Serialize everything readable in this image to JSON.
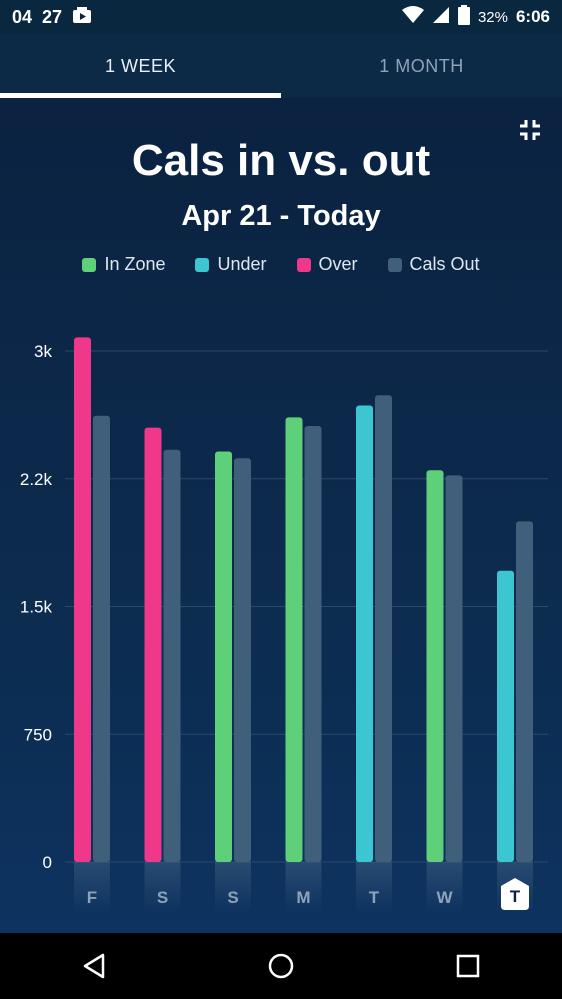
{
  "status_bar": {
    "time_left": "04",
    "time_left2": "27",
    "battery_pct": "32%",
    "clock": "6:06"
  },
  "tabs": [
    {
      "label": "1 WEEK",
      "active": true
    },
    {
      "label": "1 MONTH",
      "active": false
    }
  ],
  "colors": {
    "in_zone": "#5fd07a",
    "under": "#3cc6d2",
    "over": "#f0388a",
    "cals_out": "#3f5f7a",
    "grid": "#2a4a6a"
  },
  "chart_data": {
    "type": "bar",
    "title": "Cals in vs. out",
    "subtitle": "Apr 21 - Today",
    "legend": [
      {
        "name": "In Zone",
        "color_key": "in_zone"
      },
      {
        "name": "Under",
        "color_key": "under"
      },
      {
        "name": "Over",
        "color_key": "over"
      },
      {
        "name": "Cals Out",
        "color_key": "cals_out"
      }
    ],
    "y_ticks": [
      {
        "value": 0,
        "label": "0"
      },
      {
        "value": 750,
        "label": "750"
      },
      {
        "value": 1500,
        "label": "1.5k"
      },
      {
        "value": 2250,
        "label": "2.2k"
      },
      {
        "value": 3000,
        "label": "3k"
      }
    ],
    "ylim": [
      0,
      3000
    ],
    "categories": [
      "F",
      "S",
      "S",
      "M",
      "T",
      "W",
      "T"
    ],
    "highlight_index": 6,
    "series": [
      {
        "name": "Cals In",
        "values": [
          3080,
          2550,
          2410,
          2610,
          2680,
          2300,
          1710
        ],
        "status": [
          "over",
          "over",
          "in_zone",
          "in_zone",
          "under",
          "in_zone",
          "under"
        ]
      },
      {
        "name": "Cals Out",
        "values": [
          2620,
          2420,
          2370,
          2560,
          2740,
          2270,
          2000
        ]
      }
    ]
  }
}
